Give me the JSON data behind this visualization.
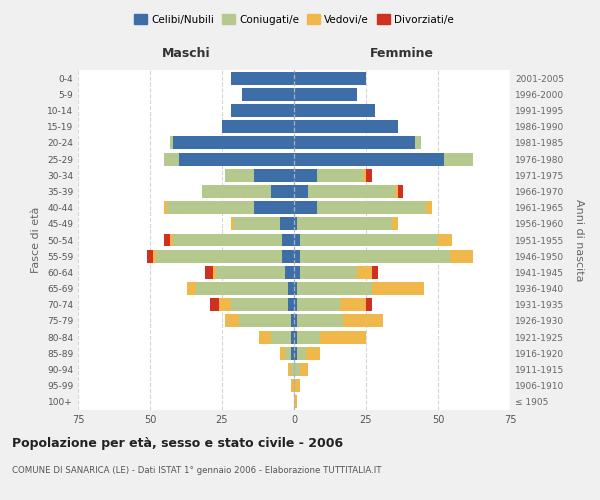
{
  "age_groups": [
    "100+",
    "95-99",
    "90-94",
    "85-89",
    "80-84",
    "75-79",
    "70-74",
    "65-69",
    "60-64",
    "55-59",
    "50-54",
    "45-49",
    "40-44",
    "35-39",
    "30-34",
    "25-29",
    "20-24",
    "15-19",
    "10-14",
    "5-9",
    "0-4"
  ],
  "birth_years": [
    "≤ 1905",
    "1906-1910",
    "1911-1915",
    "1916-1920",
    "1921-1925",
    "1926-1930",
    "1931-1935",
    "1936-1940",
    "1941-1945",
    "1946-1950",
    "1951-1955",
    "1956-1960",
    "1961-1965",
    "1966-1970",
    "1971-1975",
    "1976-1980",
    "1981-1985",
    "1986-1990",
    "1991-1995",
    "1996-2000",
    "2001-2005"
  ],
  "colors": {
    "celibi": "#3d6ea8",
    "coniugati": "#b5c98e",
    "vedovi": "#f0b84a",
    "divorziati": "#d03020"
  },
  "males": {
    "celibi": [
      0,
      0,
      0,
      1,
      1,
      1,
      2,
      2,
      3,
      4,
      4,
      5,
      14,
      8,
      14,
      40,
      42,
      25,
      22,
      18,
      22
    ],
    "coniugati": [
      0,
      0,
      1,
      2,
      7,
      18,
      20,
      32,
      24,
      44,
      38,
      16,
      30,
      24,
      10,
      5,
      1,
      0,
      0,
      0,
      0
    ],
    "vedovi": [
      0,
      1,
      1,
      2,
      4,
      5,
      4,
      3,
      1,
      1,
      1,
      1,
      1,
      0,
      0,
      0,
      0,
      0,
      0,
      0,
      0
    ],
    "divorziati": [
      0,
      0,
      0,
      0,
      0,
      0,
      3,
      0,
      3,
      2,
      2,
      0,
      0,
      0,
      0,
      0,
      0,
      0,
      0,
      0,
      0
    ]
  },
  "females": {
    "nubili": [
      0,
      0,
      0,
      1,
      1,
      1,
      1,
      1,
      2,
      2,
      2,
      1,
      8,
      5,
      8,
      52,
      42,
      36,
      28,
      22,
      25
    ],
    "coniugate": [
      0,
      0,
      2,
      3,
      8,
      16,
      15,
      26,
      20,
      52,
      48,
      33,
      38,
      30,
      16,
      10,
      2,
      0,
      0,
      0,
      0
    ],
    "vedove": [
      1,
      2,
      3,
      5,
      16,
      14,
      9,
      18,
      5,
      8,
      5,
      2,
      2,
      1,
      1,
      0,
      0,
      0,
      0,
      0,
      0
    ],
    "divorziate": [
      0,
      0,
      0,
      0,
      0,
      0,
      2,
      0,
      2,
      0,
      0,
      0,
      0,
      2,
      2,
      0,
      0,
      0,
      0,
      0,
      0
    ]
  },
  "xlim": 75,
  "title": "Popolazione per età, sesso e stato civile - 2006",
  "subtitle": "COMUNE DI SANARICA (LE) - Dati ISTAT 1° gennaio 2006 - Elaborazione TUTTITALIA.IT",
  "ylabel_left": "Fasce di età",
  "ylabel_right": "Anni di nascita",
  "xlabel_left": "Maschi",
  "xlabel_right": "Femmine",
  "legend_labels": [
    "Celibi/Nubili",
    "Coniugati/e",
    "Vedovi/e",
    "Divorziati/e"
  ],
  "background_color": "#f0f0f0",
  "plot_bg_color": "#ffffff",
  "grid_color": "#cccccc"
}
